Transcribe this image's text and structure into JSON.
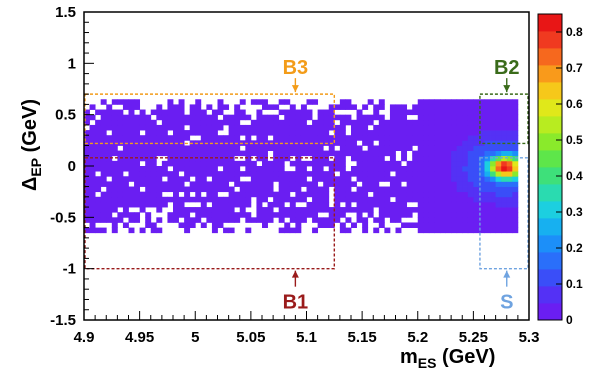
{
  "chart_data": {
    "type": "heatmap",
    "xlabel": {
      "main": "m",
      "sub": "ES",
      "unit": " (GeV)"
    },
    "ylabel": {
      "main": "Δ",
      "sub": "EP",
      "unit": " (GeV)"
    },
    "xlim": [
      4.9,
      5.3
    ],
    "ylim": [
      -1.5,
      1.5
    ],
    "x_ticks": [
      "4.9",
      "4.95",
      "5",
      "5.05",
      "5.1",
      "5.15",
      "5.2",
      "5.25",
      "5.3"
    ],
    "y_ticks": [
      "-1.5",
      "-1",
      "-0.5",
      "0",
      "0.5",
      "1",
      "1.5"
    ],
    "colorbar": {
      "range": [
        0,
        0.85
      ],
      "ticks": [
        "0",
        "0.1",
        "0.2",
        "0.3",
        "0.4",
        "0.5",
        "0.6",
        "0.7",
        "0.8"
      ]
    },
    "signal_peak": {
      "x": 5.279,
      "y": -0.01
    },
    "populated_band": {
      "x": [
        4.9,
        5.29
      ],
      "y": [
        -0.65,
        0.65
      ]
    },
    "regions": [
      {
        "label": "B1",
        "color": "#9a1b1b",
        "x": [
          4.9,
          5.125
        ],
        "y": [
          -1.0,
          0.08
        ],
        "label_side": "bottom"
      },
      {
        "label": "B2",
        "color": "#3a6b1a",
        "x": [
          5.255,
          5.3
        ],
        "y": [
          0.22,
          0.7
        ],
        "label_side": "top"
      },
      {
        "label": "B3",
        "color": "#f39c19",
        "x": [
          4.9,
          5.125
        ],
        "y": [
          0.22,
          0.7
        ],
        "label_side": "top"
      },
      {
        "label": "S",
        "color": "#6fa3e0",
        "x": [
          5.255,
          5.3
        ],
        "y": [
          -1.0,
          0.08
        ],
        "label_side": "bottom"
      }
    ]
  }
}
